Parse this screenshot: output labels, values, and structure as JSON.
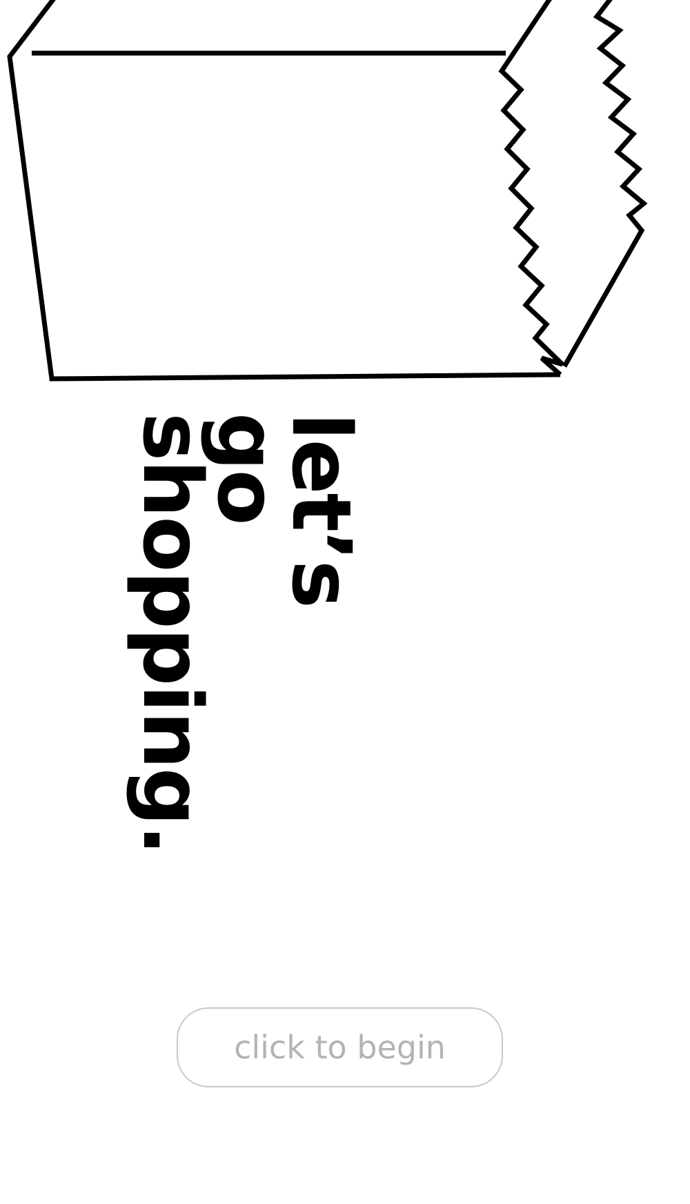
{
  "illustration": {
    "icon": "shopping-bag-icon",
    "stroke_color": "#000000"
  },
  "headline": {
    "line1": "let’s",
    "line2": "go",
    "line3": "shopping."
  },
  "start_button": {
    "label": "click to begin",
    "border_color": "#c8c8c8",
    "text_color": "#b3b3b3"
  }
}
